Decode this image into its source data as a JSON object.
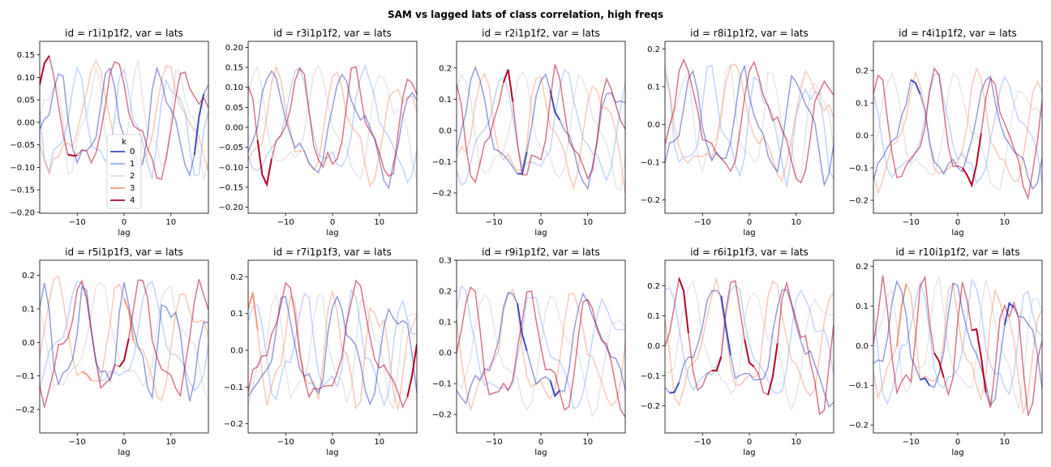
{
  "figure_title": "SAM vs lagged lats of class correlation, high freqs",
  "legend": {
    "title": "k",
    "entries": [
      {
        "label": "0",
        "color": "#3b4cc0"
      },
      {
        "label": "1",
        "color": "#8db0fe"
      },
      {
        "label": "2",
        "color": "#dddddd"
      },
      {
        "label": "3",
        "color": "#f49a7b"
      },
      {
        "label": "4",
        "color": "#b40426"
      }
    ]
  },
  "chart_data": [
    {
      "type": "line",
      "title": "id = r1i1p1f2, var = lats",
      "xlabel": "lag",
      "xlim": [
        -18,
        18
      ],
      "ylim": [
        -0.202,
        0.18
      ],
      "xticks": [
        "−10",
        "0",
        "10"
      ],
      "yticks": [
        "−0.20",
        "−0.15",
        "−0.10",
        "−0.05",
        "0.00",
        "0.05",
        "0.10",
        "0.15"
      ],
      "ytick_values": [
        -0.2,
        -0.15,
        -0.1,
        -0.05,
        0,
        0.05,
        0.1,
        0.15
      ],
      "legend": true,
      "seed": 11,
      "highlight": {
        "4": [
          -18,
          -16,
          -12,
          -10
        ],
        "0": [
          15,
          17
        ]
      }
    },
    {
      "type": "line",
      "title": "id = r3i1p1f2, var = lats",
      "xlabel": "lag",
      "xlim": [
        -18,
        18
      ],
      "ylim": [
        -0.215,
        0.215
      ],
      "xticks": [
        "−10",
        "0",
        "10"
      ],
      "yticks": [
        "−0.20",
        "−0.15",
        "−0.10",
        "−0.05",
        "0.00",
        "0.05",
        "0.10",
        "0.15",
        "0.20"
      ],
      "ytick_values": [
        -0.2,
        -0.15,
        -0.1,
        -0.05,
        0,
        0.05,
        0.1,
        0.15,
        0.2
      ],
      "legend": false,
      "seed": 23,
      "highlight": {
        "4": [
          -16,
          -13
        ]
      }
    },
    {
      "type": "line",
      "title": "id = r2i1p1f2, var = lats",
      "xlabel": "lag",
      "xlim": [
        -18,
        18
      ],
      "ylim": [
        -0.265,
        0.285
      ],
      "xticks": [
        "−10",
        "0",
        "10"
      ],
      "yticks": [
        "−0.2",
        "−0.1",
        "0.0",
        "0.1",
        "0.2"
      ],
      "ytick_values": [
        -0.2,
        -0.1,
        0,
        0.1,
        0.2
      ],
      "legend": false,
      "seed": 37,
      "highlight": {
        "0": [
          -5,
          -3,
          2,
          4
        ],
        "4": [
          -8,
          -6
        ]
      }
    },
    {
      "type": "line",
      "title": "id = r8i1p1f2, var = lats",
      "xlabel": "lag",
      "xlim": [
        -18,
        18
      ],
      "ylim": [
        -0.235,
        0.22
      ],
      "xticks": [
        "−10",
        "0",
        "10"
      ],
      "yticks": [
        "−0.2",
        "−0.1",
        "0.0",
        "0.1",
        "0.2"
      ],
      "ytick_values": [
        -0.2,
        -0.1,
        0,
        0.1,
        0.2
      ],
      "legend": false,
      "seed": 41,
      "highlight": {}
    },
    {
      "type": "line",
      "title": "id = r4i1p1f2, var = lats",
      "xlabel": "lag",
      "xlim": [
        -18,
        18
      ],
      "ylim": [
        -0.24,
        0.29
      ],
      "xticks": [
        "−10",
        "0",
        "10"
      ],
      "yticks": [
        "−0.2",
        "−0.1",
        "0.0",
        "0.1",
        "0.2"
      ],
      "ytick_values": [
        -0.2,
        -0.1,
        0,
        0.1,
        0.2
      ],
      "legend": false,
      "seed": 53,
      "highlight": {
        "4": [
          1,
          5
        ],
        "0": [
          -10,
          -8
        ]
      }
    },
    {
      "type": "line",
      "title": "id = r5i1p1f3, var = lats",
      "xlabel": "lag",
      "xlim": [
        -18,
        18
      ],
      "ylim": [
        -0.27,
        0.245
      ],
      "xticks": [
        "−10",
        "0",
        "10"
      ],
      "yticks": [
        "−0.2",
        "−0.1",
        "0.0",
        "0.1",
        "0.2"
      ],
      "ytick_values": [
        -0.2,
        -0.1,
        0,
        0.1,
        0.2
      ],
      "legend": false,
      "seed": 61,
      "highlight": {
        "4": [
          -1,
          1
        ],
        "3": [
          -9,
          -7,
          0,
          2
        ]
      }
    },
    {
      "type": "line",
      "title": "id = r7i1p1f3, var = lats",
      "xlabel": "lag",
      "xlim": [
        -18,
        18
      ],
      "ylim": [
        -0.225,
        0.245
      ],
      "xticks": [
        "−10",
        "0",
        "10"
      ],
      "yticks": [
        "−0.2",
        "−0.1",
        "0.0",
        "0.1",
        "0.2"
      ],
      "ytick_values": [
        -0.2,
        -0.1,
        0,
        0.1,
        0.2
      ],
      "legend": false,
      "seed": 71,
      "highlight": {
        "3": [
          -18,
          -16
        ],
        "4": [
          16,
          18
        ]
      }
    },
    {
      "type": "line",
      "title": "id = r9i1p1f2, var = lats",
      "xlabel": "lag",
      "xlim": [
        -18,
        18
      ],
      "ylim": [
        -0.26,
        0.3
      ],
      "xticks": [
        "−10",
        "0",
        "10"
      ],
      "yticks": [
        "−0.2",
        "−0.1",
        "0.0",
        "0.1",
        "0.2",
        "0.3"
      ],
      "ytick_values": [
        -0.2,
        -0.1,
        0,
        0.1,
        0.2,
        0.3
      ],
      "legend": false,
      "seed": 83,
      "highlight": {
        "0": [
          -5,
          -3,
          2,
          4
        ]
      }
    },
    {
      "type": "line",
      "title": "id = r6i1p1f3, var = lats",
      "xlabel": "lag",
      "xlim": [
        -18,
        18
      ],
      "ylim": [
        -0.29,
        0.285
      ],
      "xticks": [
        "−10",
        "0",
        "10"
      ],
      "yticks": [
        "−0.2",
        "−0.1",
        "0.0",
        "0.1",
        "0.2"
      ],
      "ytick_values": [
        -0.2,
        -0.1,
        0,
        0.1,
        0.2
      ],
      "legend": false,
      "seed": 97,
      "highlight": {
        "4": [
          -15,
          -13,
          -8,
          -6,
          -1,
          1,
          4,
          6
        ],
        "0": [
          -17,
          -15,
          -6,
          -4
        ]
      }
    },
    {
      "type": "line",
      "title": "id = r10i1p1f2, var = lats",
      "xlabel": "lag",
      "xlim": [
        -18,
        18
      ],
      "ylim": [
        -0.22,
        0.215
      ],
      "xticks": [
        "−10",
        "0",
        "10"
      ],
      "yticks": [
        "−0.2",
        "−0.1",
        "0.0",
        "0.1",
        "0.2"
      ],
      "ytick_values": [
        -0.2,
        -0.1,
        0,
        0.1,
        0.2
      ],
      "legend": false,
      "seed": 109,
      "highlight": {
        "4": [
          -5,
          -3,
          3,
          6
        ],
        "0": [
          -8,
          -6,
          10,
          12
        ],
        "3": [
          -13,
          -11
        ]
      }
    }
  ]
}
